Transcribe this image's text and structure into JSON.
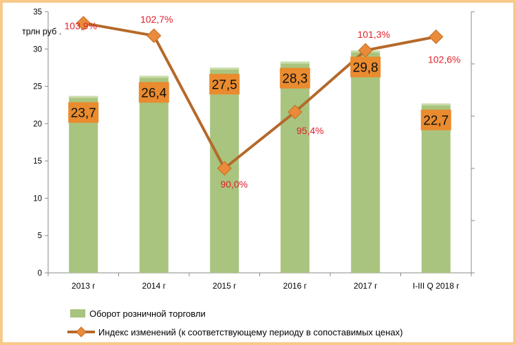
{
  "chart_data": {
    "type": "bar",
    "categories": [
      "2013 г",
      "2014 г",
      "2015 г",
      "2016 г",
      "2017 г",
      "I-III Q 2018 г"
    ],
    "y_unit_label": "трлн руб .",
    "ylim": [
      0,
      35
    ],
    "yticks": [
      "0",
      "5",
      "10",
      "15",
      "20",
      "25",
      "30",
      "35"
    ],
    "ytick_values": [
      0,
      5,
      10,
      15,
      20,
      25,
      30,
      35
    ],
    "secondary_ylim": [
      80,
      105
    ],
    "series": [
      {
        "name": "Оборот розничной торговли",
        "kind": "bar",
        "axis": "primary",
        "values": [
          23.7,
          26.4,
          27.5,
          28.3,
          29.8,
          22.7
        ],
        "labels": [
          "23,7",
          "26,4",
          "27,5",
          "28,3",
          "29,8",
          "22,7"
        ]
      },
      {
        "name": "Индекс изменений (к соответствующему периоду в сопоставимых ценах)",
        "kind": "line",
        "axis": "secondary",
        "values": [
          103.9,
          102.7,
          90.0,
          95.4,
          101.3,
          102.6
        ],
        "labels": [
          "103,9%",
          "102,7%",
          "90,0%",
          "95,4%",
          "101,3%",
          "102,6%"
        ]
      }
    ],
    "legend_position": "bottom-left",
    "grid": false
  },
  "colors": {
    "bar": "#a9c47f",
    "line": "#b5692a",
    "marker": "#e98b3a",
    "marker_stroke": "#c46a20",
    "label_box": "#e98b2e",
    "percent_text": "#e0202a",
    "frame": "#f7c98a"
  }
}
